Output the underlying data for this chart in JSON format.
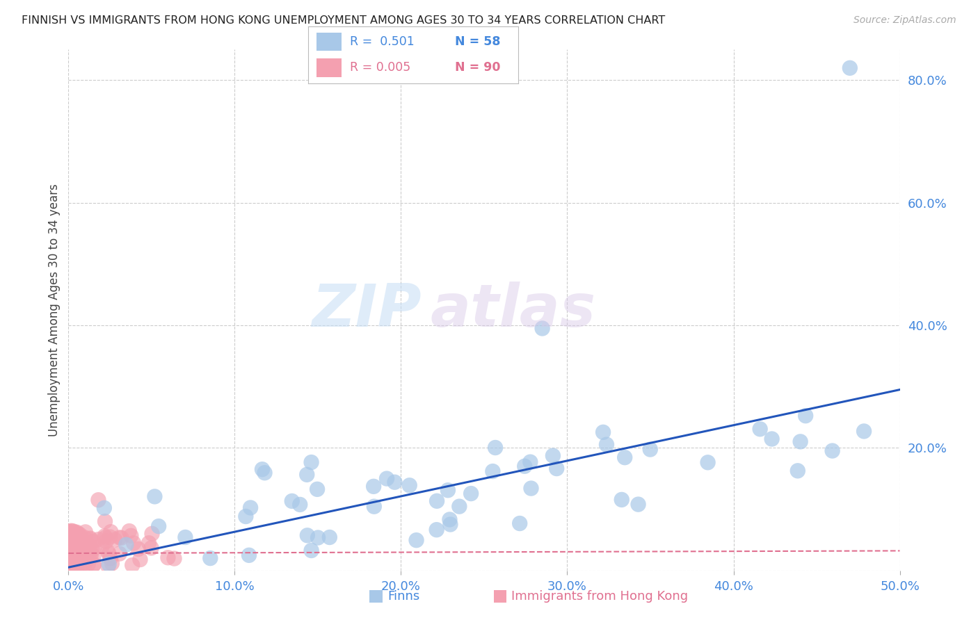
{
  "title": "FINNISH VS IMMIGRANTS FROM HONG KONG UNEMPLOYMENT AMONG AGES 30 TO 34 YEARS CORRELATION CHART",
  "source": "Source: ZipAtlas.com",
  "ylabel": "Unemployment Among Ages 30 to 34 years",
  "xlim": [
    0.0,
    0.5
  ],
  "ylim": [
    0.0,
    0.85
  ],
  "xticks": [
    0.0,
    0.1,
    0.2,
    0.3,
    0.4,
    0.5
  ],
  "yticks_right": [
    0.0,
    0.2,
    0.4,
    0.6,
    0.8
  ],
  "ytick_labels_right": [
    "",
    "20.0%",
    "40.0%",
    "60.0%",
    "80.0%"
  ],
  "xtick_labels": [
    "0.0%",
    "10.0%",
    "20.0%",
    "30.0%",
    "40.0%",
    "50.0%"
  ],
  "legend_r_finns": "R =  0.501",
  "legend_n_finns": "N = 58",
  "legend_r_hk": "R = 0.005",
  "legend_n_hk": "N = 90",
  "color_finns": "#a8c8e8",
  "color_hk": "#f4a0b0",
  "color_finns_line": "#2255bb",
  "color_hk_line": "#e07090",
  "color_axis_text": "#4488dd",
  "color_hk_text": "#e07090",
  "watermark_zip": "ZIP",
  "watermark_atlas": "atlas",
  "background_color": "#ffffff",
  "grid_color": "#cccccc",
  "finns_trend_x": [
    0.0,
    0.5
  ],
  "finns_trend_y": [
    0.005,
    0.295
  ],
  "hk_trend_x": [
    0.0,
    0.5
  ],
  "hk_trend_y": [
    0.028,
    0.032
  ]
}
